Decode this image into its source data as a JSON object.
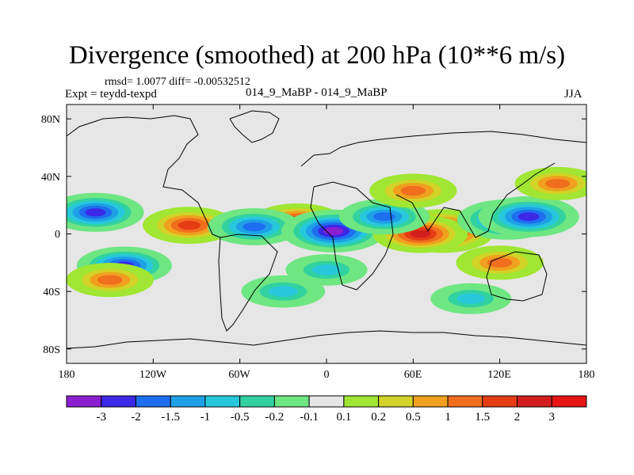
{
  "figure": {
    "title": "Divergence (smoothed) at 200 hPa (10**6 m/s)",
    "stats_line": "rmsd= 1.0077 diff= -0.00532512",
    "experiment_label": "Expt = teydd-texpd",
    "runs_label": "014_9_MaBP - 014_9_MaBP",
    "season": "JJA"
  },
  "map": {
    "projection": "cylindrical equidistant",
    "lon_range": [
      -180,
      180
    ],
    "lat_range": [
      -90,
      90
    ],
    "lat_tick_labels": [
      "80N",
      "40N",
      "0",
      "40S",
      "80S"
    ],
    "lat_tick_values": [
      80,
      40,
      0,
      -40,
      -80
    ],
    "lon_tick_labels": [
      "180",
      "120W",
      "60W",
      "0",
      "60E",
      "120E",
      "180"
    ],
    "lon_tick_values": [
      -180,
      -120,
      -60,
      0,
      60,
      120,
      180
    ],
    "field_features": [
      {
        "lon": -160,
        "lat": 15,
        "value": -2.2
      },
      {
        "lon": -140,
        "lat": -22,
        "value": -2.0
      },
      {
        "lon": -150,
        "lat": -32,
        "value": 1.2
      },
      {
        "lon": -95,
        "lat": 6,
        "value": 1.8
      },
      {
        "lon": -20,
        "lat": 8,
        "value": 2.0
      },
      {
        "lon": -50,
        "lat": 5,
        "value": -1.8
      },
      {
        "lon": 5,
        "lat": 2,
        "value": -3.0
      },
      {
        "lon": 80,
        "lat": 2,
        "value": 3.2
      },
      {
        "lon": 65,
        "lat": 0,
        "value": 2.0
      },
      {
        "lon": 125,
        "lat": 10,
        "value": -2.5
      },
      {
        "lon": 140,
        "lat": 12,
        "value": -2.6
      },
      {
        "lon": 40,
        "lat": 12,
        "value": -1.5
      },
      {
        "lon": 120,
        "lat": -20,
        "value": 1.2
      },
      {
        "lon": 160,
        "lat": 35,
        "value": 1.0
      },
      {
        "lon": -30,
        "lat": -40,
        "value": -0.8
      },
      {
        "lon": 60,
        "lat": 30,
        "value": 1.2
      },
      {
        "lon": 0,
        "lat": -25,
        "value": -0.6
      },
      {
        "lon": 100,
        "lat": -45,
        "value": -0.5
      }
    ]
  },
  "colorbar": {
    "levels": [
      "-3",
      "-2",
      "-1.5",
      "-1",
      "-0.5",
      "-0.2",
      "-0.1",
      "0.1",
      "0.2",
      "0.5",
      "1",
      "1.5",
      "2",
      "3"
    ],
    "colors": [
      "#8c1ed2",
      "#3c28e6",
      "#1e6ef0",
      "#1ea0e6",
      "#28c8dc",
      "#32d2a0",
      "#6ee682",
      "#e6e6e6",
      "#a0e632",
      "#d2d228",
      "#f0a01e",
      "#f06e1e",
      "#e63c14",
      "#d21e1e",
      "#e61414"
    ]
  }
}
